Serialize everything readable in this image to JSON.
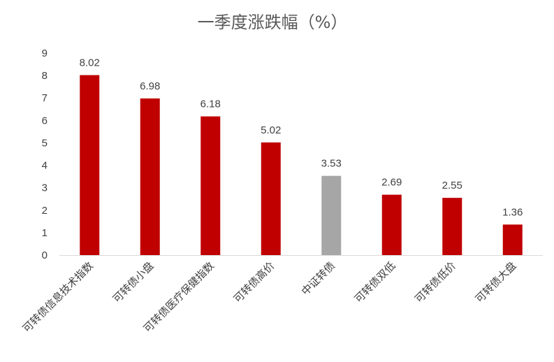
{
  "chart_data": {
    "type": "bar",
    "title": "一季度涨跌幅（%）",
    "categories": [
      "可转债信息技术指数",
      "可转债小盘",
      "可转债医疗保健指数",
      "可转债高价",
      "中证转债",
      "可转债双低",
      "可转债低价",
      "可转债大盘"
    ],
    "values": [
      8.02,
      6.98,
      6.18,
      5.02,
      3.53,
      2.69,
      2.55,
      1.36
    ],
    "value_labels": [
      "8.02",
      "6.98",
      "6.18",
      "5.02",
      "3.53",
      "2.69",
      "2.55",
      "1.36"
    ],
    "ylim": [
      0,
      9
    ],
    "yticks": [
      "0",
      "1",
      "2",
      "3",
      "4",
      "5",
      "6",
      "7",
      "8",
      "9"
    ],
    "gridlines": false,
    "legend": "none",
    "colors": {
      "default_bar": "#C00000",
      "benchmark_bar": "#A6A6A6",
      "benchmark_category": "中证转债",
      "axis": "#D9D9D9",
      "text": "#404040",
      "title": "#595959"
    }
  }
}
